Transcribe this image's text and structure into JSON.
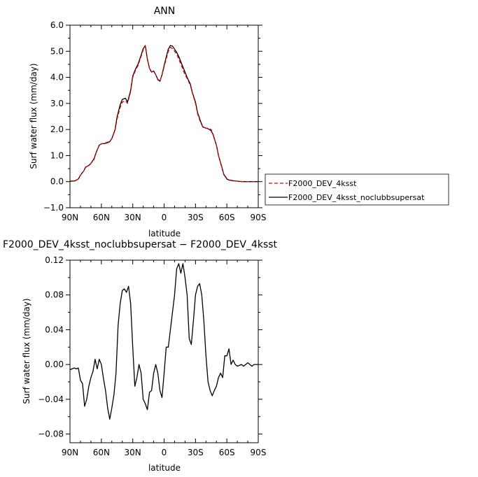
{
  "chart_data": [
    {
      "type": "line",
      "title": "ANN",
      "xlabel": "latitude",
      "ylabel": "Surf water flux (mm/day)",
      "xlim": [
        90,
        -90
      ],
      "ylim": [
        -1.0,
        6.0
      ],
      "x_ticks": [
        90,
        60,
        30,
        0,
        -30,
        -60,
        -90
      ],
      "x_tick_labels": [
        "90N",
        "60N",
        "30N",
        "0",
        "30S",
        "60S",
        "90S"
      ],
      "y_ticks": [
        -1.0,
        0.0,
        1.0,
        2.0,
        3.0,
        4.0,
        5.0,
        6.0
      ],
      "y_tick_labels": [
        "−1.0",
        "0.0",
        "1.0",
        "2.0",
        "3.0",
        "4.0",
        "5.0",
        "6.0"
      ],
      "legend_position": "right",
      "series": [
        {
          "name": "F2000_DEV_4ksst",
          "color": "#e00000",
          "dash": "dashed",
          "x": [
            90,
            85,
            82,
            80,
            77,
            75,
            72,
            70,
            67,
            65,
            62,
            60,
            57,
            55,
            52,
            50,
            47,
            45,
            42,
            40,
            37,
            35,
            32,
            30,
            27,
            25,
            22,
            20,
            18,
            16,
            14,
            12,
            10,
            8,
            6,
            4,
            2,
            0,
            -2,
            -4,
            -6,
            -8,
            -10,
            -12,
            -14,
            -16,
            -18,
            -20,
            -22,
            -25,
            -27,
            -30,
            -32,
            -35,
            -37,
            -40,
            -42,
            -45,
            -47,
            -50,
            -52,
            -55,
            -57,
            -60,
            -62,
            -65,
            -67,
            -70,
            -72,
            -75,
            -77,
            -80,
            -85,
            -90
          ],
          "values": [
            0.02,
            0.04,
            0.1,
            0.25,
            0.4,
            0.55,
            0.62,
            0.7,
            0.85,
            1.1,
            1.4,
            1.45,
            1.48,
            1.5,
            1.55,
            1.65,
            1.95,
            2.4,
            2.85,
            3.05,
            3.1,
            3.0,
            3.45,
            4.0,
            4.3,
            4.45,
            4.8,
            5.05,
            5.2,
            4.7,
            4.35,
            4.2,
            4.25,
            4.1,
            3.9,
            3.85,
            4.1,
            4.4,
            4.7,
            5.0,
            5.15,
            5.1,
            5.0,
            4.9,
            4.7,
            4.5,
            4.3,
            4.1,
            3.95,
            3.7,
            3.4,
            3.0,
            2.6,
            2.25,
            2.1,
            2.05,
            2.05,
            2.0,
            1.8,
            1.4,
            1.0,
            0.6,
            0.3,
            0.12,
            0.07,
            0.05,
            0.03,
            0.02,
            0.01,
            0.0,
            0.0,
            0.0,
            0.0,
            0.0
          ]
        },
        {
          "name": "F2000_DEV_4ksst_noclubbsupersat",
          "color": "#000000",
          "dash": "solid",
          "x": [
            90,
            85,
            82,
            80,
            77,
            75,
            72,
            70,
            67,
            65,
            62,
            60,
            57,
            55,
            52,
            50,
            47,
            45,
            42,
            40,
            37,
            35,
            32,
            30,
            27,
            25,
            22,
            20,
            18,
            16,
            14,
            12,
            10,
            8,
            6,
            4,
            2,
            0,
            -2,
            -4,
            -6,
            -8,
            -10,
            -12,
            -14,
            -16,
            -18,
            -20,
            -22,
            -25,
            -27,
            -30,
            -32,
            -35,
            -37,
            -40,
            -42,
            -45,
            -47,
            -50,
            -52,
            -55,
            -57,
            -60,
            -62,
            -65,
            -67,
            -70,
            -72,
            -75,
            -77,
            -80,
            -85,
            -90
          ],
          "values": [
            0.01,
            0.03,
            0.1,
            0.25,
            0.4,
            0.56,
            0.62,
            0.7,
            0.88,
            1.12,
            1.4,
            1.45,
            1.46,
            1.48,
            1.53,
            1.65,
            1.98,
            2.48,
            2.95,
            3.15,
            3.2,
            3.05,
            3.5,
            4.05,
            4.35,
            4.5,
            4.85,
            5.1,
            5.22,
            4.7,
            4.35,
            4.2,
            4.24,
            4.1,
            3.92,
            3.85,
            4.1,
            4.45,
            4.78,
            5.08,
            5.22,
            5.2,
            5.08,
            4.96,
            4.8,
            4.6,
            4.4,
            4.2,
            4.0,
            3.75,
            3.42,
            3.05,
            2.65,
            2.3,
            2.1,
            2.05,
            2.03,
            1.95,
            1.78,
            1.4,
            1.0,
            0.58,
            0.28,
            0.1,
            0.06,
            0.04,
            0.03,
            0.02,
            0.01,
            0.0,
            0.0,
            0.0,
            0.0,
            0.0
          ]
        }
      ]
    },
    {
      "type": "line",
      "title": "F2000_DEV_4ksst_noclubbsupersat − F2000_DEV_4ksst",
      "xlabel": "latitude",
      "ylabel": "Surf water flux (mm/day)",
      "xlim": [
        90,
        -90
      ],
      "ylim": [
        -0.09,
        0.12
      ],
      "x_ticks": [
        90,
        60,
        30,
        0,
        -30,
        -60,
        -90
      ],
      "x_tick_labels": [
        "90N",
        "60N",
        "30N",
        "0",
        "30S",
        "60S",
        "90S"
      ],
      "y_ticks": [
        -0.08,
        -0.04,
        0.0,
        0.04,
        0.08,
        0.12
      ],
      "y_tick_labels": [
        "−0.08",
        "−0.04",
        "0.00",
        "0.04",
        "0.08",
        "0.12"
      ],
      "series": [
        {
          "color": "#000000",
          "dash": "solid",
          "x": [
            90,
            88,
            86,
            84,
            82,
            80,
            78,
            76,
            74,
            72,
            70,
            68,
            66,
            64,
            62,
            60,
            58,
            56,
            54,
            52,
            50,
            48,
            46,
            44,
            42,
            40,
            38,
            36,
            34,
            32,
            30,
            28,
            26,
            24,
            22,
            20,
            18,
            16,
            14,
            12,
            10,
            8,
            6,
            4,
            2,
            0,
            -2,
            -4,
            -6,
            -8,
            -10,
            -12,
            -14,
            -16,
            -18,
            -20,
            -22,
            -24,
            -26,
            -28,
            -30,
            -32,
            -34,
            -36,
            -38,
            -40,
            -42,
            -44,
            -46,
            -48,
            -50,
            -52,
            -54,
            -56,
            -58,
            -60,
            -62,
            -64,
            -66,
            -68,
            -70,
            -72,
            -74,
            -76,
            -78,
            -80,
            -82,
            -84,
            -86,
            -88,
            -90
          ],
          "values": [
            -0.006,
            -0.005,
            -0.004,
            -0.005,
            -0.004,
            -0.018,
            -0.022,
            -0.048,
            -0.04,
            -0.025,
            -0.015,
            -0.008,
            0.006,
            -0.005,
            0.006,
            0.0,
            -0.016,
            -0.03,
            -0.05,
            -0.063,
            -0.05,
            -0.035,
            -0.01,
            0.045,
            0.07,
            0.085,
            0.087,
            0.083,
            0.09,
            0.07,
            0.02,
            -0.025,
            -0.015,
            0.0,
            -0.01,
            -0.04,
            -0.045,
            -0.052,
            -0.032,
            -0.03,
            -0.01,
            0.0,
            -0.01,
            -0.03,
            -0.038,
            -0.01,
            0.02,
            0.02,
            0.04,
            0.06,
            0.08,
            0.11,
            0.116,
            0.105,
            0.116,
            0.1,
            0.08,
            0.03,
            0.023,
            0.05,
            0.08,
            0.09,
            0.093,
            0.08,
            0.05,
            0.01,
            -0.02,
            -0.03,
            -0.036,
            -0.03,
            -0.025,
            -0.015,
            -0.01,
            -0.015,
            0.01,
            0.01,
            0.018,
            0.0,
            0.005,
            0.0,
            -0.002,
            -0.001,
            0.0,
            -0.002,
            0.0,
            0.002,
            0.0,
            -0.002,
            0.0,
            0.0,
            0.0
          ]
        }
      ]
    }
  ]
}
